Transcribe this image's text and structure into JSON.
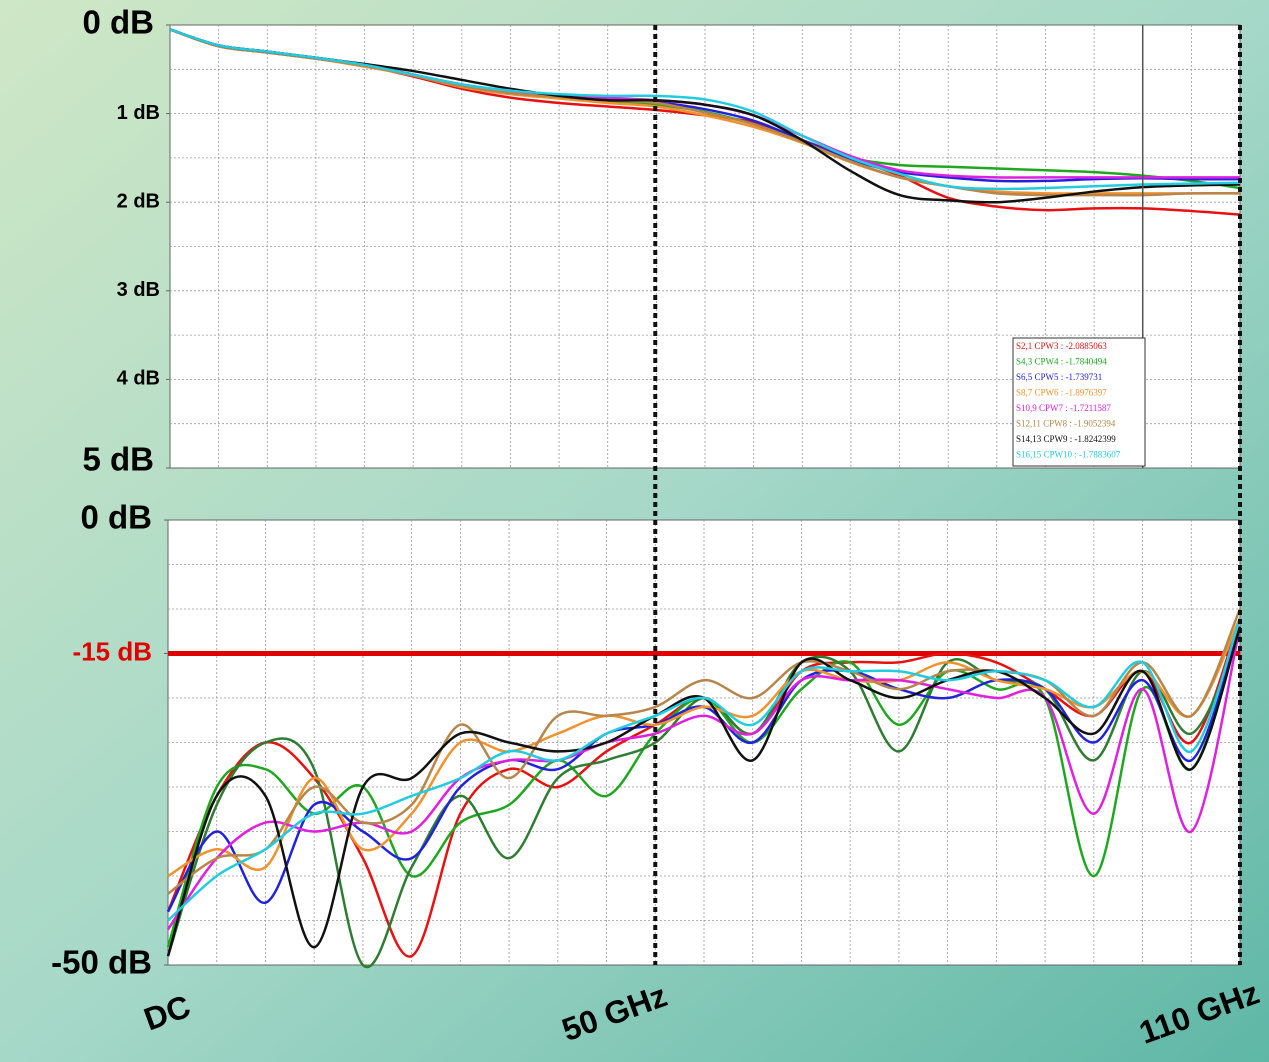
{
  "chart_data": [
    {
      "type": "line",
      "xlim": [
        0,
        110
      ],
      "ylim": [
        0,
        5
      ],
      "y_inverted": true,
      "grid": true,
      "legend": "bottom right",
      "yticks": [
        {
          "value": 0,
          "label": "0 dB"
        },
        {
          "value": 1,
          "label": "1 dB"
        },
        {
          "value": 2,
          "label": "2 dB"
        },
        {
          "value": 3,
          "label": "3 dB"
        },
        {
          "value": 4,
          "label": "4 dB"
        },
        {
          "value": 5,
          "label": "5 dB"
        }
      ],
      "x": [
        0,
        5,
        10,
        15,
        20,
        25,
        30,
        35,
        40,
        45,
        50,
        55,
        60,
        65,
        70,
        75,
        80,
        85,
        90,
        95,
        100,
        105,
        110
      ],
      "series": [
        {
          "name": "S2,1 CPW3 : -2.0885063",
          "color": "#e81010",
          "values": [
            0.05,
            0.24,
            0.31,
            0.38,
            0.46,
            0.58,
            0.72,
            0.82,
            0.88,
            0.92,
            0.96,
            1.02,
            1.1,
            1.3,
            1.5,
            1.7,
            1.95,
            2.05,
            2.09,
            2.07,
            2.07,
            2.1,
            2.14
          ]
        },
        {
          "name": "S4,3 CPW4 : -1.7840494",
          "color": "#1fa81f",
          "values": [
            0.05,
            0.23,
            0.3,
            0.37,
            0.45,
            0.56,
            0.68,
            0.77,
            0.82,
            0.86,
            0.9,
            0.98,
            1.12,
            1.32,
            1.5,
            1.58,
            1.6,
            1.62,
            1.64,
            1.66,
            1.7,
            1.76,
            1.84
          ]
        },
        {
          "name": "S6,5 CPW5 : -1.739731",
          "color": "#2222dd",
          "values": [
            0.05,
            0.23,
            0.3,
            0.37,
            0.45,
            0.56,
            0.68,
            0.75,
            0.79,
            0.83,
            0.87,
            0.95,
            1.08,
            1.3,
            1.52,
            1.66,
            1.72,
            1.76,
            1.76,
            1.74,
            1.73,
            1.74,
            1.74
          ]
        },
        {
          "name": "S8,7 CPW6 : -1.8976397",
          "color": "#f0922e",
          "values": [
            0.05,
            0.24,
            0.31,
            0.38,
            0.47,
            0.57,
            0.7,
            0.78,
            0.83,
            0.88,
            0.92,
            1.02,
            1.15,
            1.33,
            1.55,
            1.72,
            1.82,
            1.88,
            1.9,
            1.9,
            1.9,
            1.9,
            1.9
          ]
        },
        {
          "name": "S10,9 CPW7 : -1.7211587",
          "color": "#e020e0",
          "values": [
            0.05,
            0.23,
            0.3,
            0.37,
            0.45,
            0.56,
            0.67,
            0.75,
            0.79,
            0.82,
            0.85,
            0.9,
            1.02,
            1.25,
            1.48,
            1.64,
            1.7,
            1.72,
            1.72,
            1.72,
            1.72,
            1.72,
            1.72
          ]
        },
        {
          "name": "S12,11 CPW8 : -1.9052394",
          "color": "#b8864b",
          "values": [
            0.05,
            0.24,
            0.31,
            0.38,
            0.46,
            0.57,
            0.69,
            0.77,
            0.81,
            0.85,
            0.88,
            0.99,
            1.12,
            1.32,
            1.54,
            1.72,
            1.82,
            1.9,
            1.92,
            1.92,
            1.92,
            1.9,
            1.9
          ]
        },
        {
          "name": "S14,13 CPW9 : -1.8242399",
          "color": "#111111",
          "values": [
            0.05,
            0.23,
            0.3,
            0.37,
            0.44,
            0.52,
            0.62,
            0.72,
            0.8,
            0.85,
            0.85,
            0.9,
            1.02,
            1.3,
            1.65,
            1.92,
            1.98,
            2.0,
            1.95,
            1.88,
            1.83,
            1.81,
            1.8
          ]
        },
        {
          "name": "S16,15 CPW10 : -1.7883607",
          "color": "#22cce0",
          "values": [
            0.05,
            0.23,
            0.3,
            0.37,
            0.45,
            0.56,
            0.67,
            0.74,
            0.78,
            0.8,
            0.8,
            0.84,
            0.98,
            1.25,
            1.5,
            1.68,
            1.82,
            1.85,
            1.84,
            1.82,
            1.8,
            1.79,
            1.78
          ]
        }
      ]
    },
    {
      "type": "line",
      "xlim": [
        0,
        110
      ],
      "ylim": [
        -50,
        0
      ],
      "grid": true,
      "yticks": [
        {
          "value": 0,
          "label": "0 dB"
        },
        {
          "value": -15,
          "label": "-15 dB"
        },
        {
          "value": -50,
          "label": "-50 dB"
        }
      ],
      "xticks": [
        {
          "value": 0,
          "label": "DC"
        },
        {
          "value": 50,
          "label": "50 GHz"
        },
        {
          "value": 110,
          "label": "110 GHz"
        }
      ],
      "reference_line": {
        "value": -15,
        "color": "#e00000"
      },
      "x": [
        0,
        5,
        10,
        15,
        20,
        25,
        30,
        35,
        40,
        45,
        50,
        55,
        60,
        65,
        70,
        75,
        80,
        85,
        90,
        95,
        100,
        105,
        110
      ],
      "series": [
        {
          "color": "#e81010",
          "values": [
            -44,
            -31,
            -25,
            -29,
            -38,
            -49,
            -33,
            -28,
            -30,
            -26,
            -23,
            -20,
            -24,
            -17,
            -16,
            -16,
            -15,
            -16,
            -19,
            -22,
            -17,
            -25,
            -11
          ]
        },
        {
          "color": "#1fa81f",
          "values": [
            -48,
            -30,
            -28,
            -33,
            -30,
            -40,
            -34,
            -32,
            -27,
            -31,
            -24,
            -20,
            -25,
            -19,
            -16,
            -23,
            -17,
            -19,
            -20,
            -40,
            -19,
            -28,
            -12
          ]
        },
        {
          "color": "#2e7d32",
          "values": [
            -49,
            -32,
            -25,
            -28,
            -50,
            -39,
            -31,
            -38,
            -29,
            -27,
            -25,
            -20,
            -24,
            -16,
            -17,
            -26,
            -16,
            -18,
            -19,
            -27,
            -17,
            -24,
            -13
          ]
        },
        {
          "color": "#2222dd",
          "values": [
            -44,
            -35,
            -43,
            -32,
            -35,
            -38,
            -30,
            -27,
            -28,
            -24,
            -23,
            -21,
            -25,
            -18,
            -17,
            -19,
            -20,
            -18,
            -19,
            -25,
            -18,
            -27,
            -12
          ]
        },
        {
          "color": "#f0922e",
          "values": [
            -40,
            -37,
            -39,
            -29,
            -37,
            -33,
            -25,
            -26,
            -24,
            -22,
            -23,
            -21,
            -22,
            -17,
            -18,
            -18,
            -16,
            -18,
            -19,
            -21,
            -17,
            -22,
            -11
          ]
        },
        {
          "color": "#e020e0",
          "values": [
            -46,
            -38,
            -34,
            -35,
            -34,
            -35,
            -29,
            -27,
            -27,
            -25,
            -24,
            -22,
            -24,
            -18,
            -18,
            -18,
            -19,
            -20,
            -20,
            -33,
            -19,
            -35,
            -12
          ]
        },
        {
          "color": "#b8864b",
          "values": [
            -42,
            -38,
            -37,
            -30,
            -34,
            -32,
            -23,
            -29,
            -22,
            -22,
            -21,
            -18,
            -20,
            -16,
            -17,
            -19,
            -17,
            -17,
            -18,
            -22,
            -16,
            -22,
            -10
          ]
        },
        {
          "color": "#111111",
          "values": [
            -49,
            -31,
            -31,
            -48,
            -30,
            -29,
            -24,
            -25,
            -26,
            -25,
            -22,
            -20,
            -27,
            -16,
            -18,
            -20,
            -18,
            -17,
            -20,
            -24,
            -17,
            -28,
            -12
          ]
        },
        {
          "color": "#22cce0",
          "values": [
            -45,
            -40,
            -37,
            -33,
            -33,
            -31,
            -29,
            -26,
            -27,
            -24,
            -22,
            -20,
            -23,
            -17,
            -17,
            -17,
            -18,
            -17,
            -18,
            -21,
            -16,
            -26,
            -11
          ]
        }
      ]
    }
  ]
}
